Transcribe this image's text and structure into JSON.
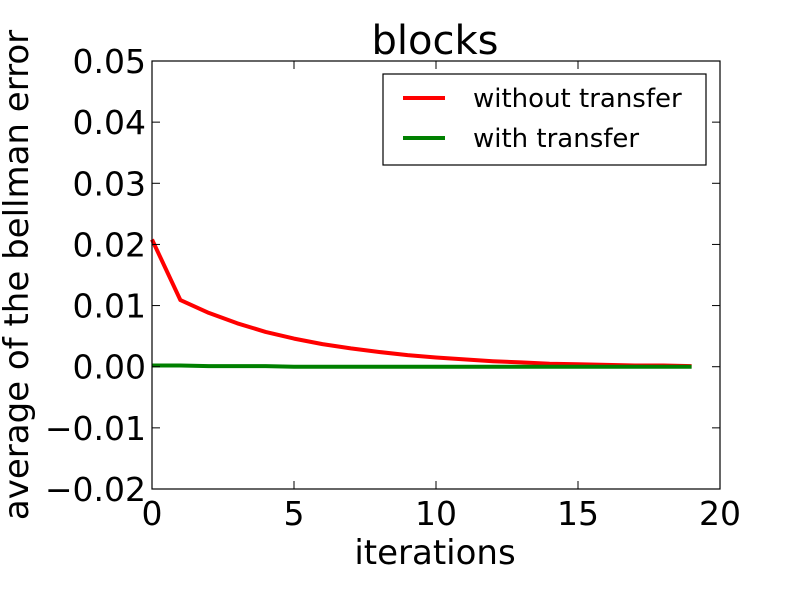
{
  "chart_data": {
    "type": "line",
    "title": "blocks",
    "xlabel": "iterations",
    "ylabel": "average of the bellman error",
    "xlim": [
      0,
      20
    ],
    "ylim": [
      -0.02,
      0.05
    ],
    "xticks": [
      0,
      5,
      10,
      15,
      20
    ],
    "xtick_labels": [
      "0",
      "5",
      "10",
      "15",
      "20"
    ],
    "yticks": [
      -0.02,
      -0.01,
      0.0,
      0.01,
      0.02,
      0.03,
      0.04,
      0.05
    ],
    "ytick_labels": [
      "−0.02",
      "−0.01",
      "0.00",
      "0.01",
      "0.02",
      "0.03",
      "0.04",
      "0.05"
    ],
    "grid": false,
    "legend_position": "top-right",
    "series": [
      {
        "name": "without transfer",
        "color": "#ff0000",
        "x": [
          0,
          1,
          2,
          3,
          4,
          5,
          6,
          7,
          8,
          9,
          10,
          11,
          12,
          13,
          14,
          15,
          16,
          17,
          18,
          19
        ],
        "y": [
          0.0208,
          0.0109,
          0.0088,
          0.0071,
          0.0057,
          0.0046,
          0.0037,
          0.003,
          0.0024,
          0.0019,
          0.0015,
          0.0012,
          0.0009,
          0.0007,
          0.0005,
          0.0004,
          0.0003,
          0.0002,
          0.0002,
          0.0001
        ]
      },
      {
        "name": "with transfer",
        "color": "#008000",
        "x": [
          0,
          1,
          2,
          3,
          4,
          5,
          6,
          7,
          8,
          9,
          10,
          11,
          12,
          13,
          14,
          15,
          16,
          17,
          18,
          19
        ],
        "y": [
          0.0002,
          0.0002,
          0.0001,
          0.0001,
          0.0001,
          0.0,
          0.0,
          0.0,
          0.0,
          0.0,
          0.0,
          0.0,
          0.0,
          0.0,
          0.0,
          0.0,
          0.0,
          0.0,
          0.0,
          0.0
        ]
      }
    ]
  }
}
